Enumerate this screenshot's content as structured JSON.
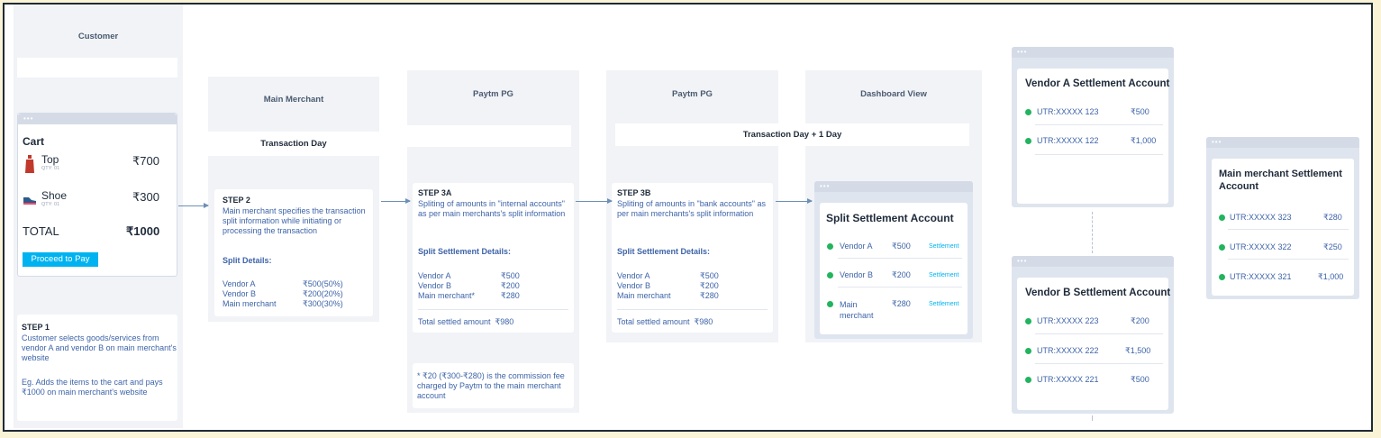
{
  "customer": {
    "title": "Customer",
    "cart": {
      "title": "Cart",
      "items": [
        {
          "name": "Top",
          "qty": "QTY: 01",
          "price": "₹700"
        },
        {
          "name": "Shoe",
          "qty": "QTY: 01",
          "price": "₹300"
        }
      ],
      "total_label": "TOTAL",
      "total_value": "₹1000",
      "button": "Proceed to Pay"
    },
    "step1": {
      "title": "STEP 1",
      "text": "Customer selects goods/services from vendor A and vendor B on main merchant's website",
      "example": "Eg. Adds the items to the cart and pays ₹1000 on main merchant's website"
    }
  },
  "main_merchant": {
    "title": "Main Merchant",
    "band": "Transaction Day",
    "step2": {
      "title": "STEP 2",
      "text": "Main merchant specifies the transaction split information while initiating or processing the transaction",
      "split_title": "Split Details:",
      "rows": [
        {
          "label": "Vendor A",
          "value": "₹500(50%)"
        },
        {
          "label": "Vendor B",
          "value": "₹200(20%)"
        },
        {
          "label": "Main merchant",
          "value": "₹300(30%)"
        }
      ]
    }
  },
  "pg_a": {
    "title": "Paytm PG",
    "step3a": {
      "title": "STEP 3A",
      "text": "Spliting of amounts in \"internal accounts\" as per main merchants's split information",
      "details_title": "Split Settlement Details:",
      "rows": [
        {
          "label": "Vendor A",
          "value": "₹500"
        },
        {
          "label": "Vendor B",
          "value": "₹200"
        },
        {
          "label": "Main merchant*",
          "value": "₹280"
        }
      ],
      "total": "Total settled amount  ₹980"
    },
    "note": "* ₹20 (₹300-₹280) is the commission fee charged by Paytm to the main merchant account"
  },
  "pg_b": {
    "title": "Paytm PG",
    "band": "Transaction Day + 1 Day",
    "step3b": {
      "title": "STEP 3B",
      "text": "Spliting of amounts in \"bank accounts\" as per main merchants's split information",
      "details_title": "Split Settlement Details:",
      "rows": [
        {
          "label": "Vendor A",
          "value": "₹500"
        },
        {
          "label": "Vendor B",
          "value": "₹200"
        },
        {
          "label": "Main merchant",
          "value": "₹280"
        }
      ],
      "total": "Total settled amount  ₹980"
    }
  },
  "dashboard": {
    "title": "Dashboard View",
    "card_title": "Split Settlement Account",
    "rows": [
      {
        "label": "Vendor A",
        "value": "₹500",
        "link": "Settlement"
      },
      {
        "label": "Vendor B",
        "value": "₹200",
        "link": "Settlement"
      },
      {
        "label": "Main merchant",
        "value": "₹280",
        "link": "Settlement"
      }
    ]
  },
  "vendor_a": {
    "title": "Vendor A Settlement Account",
    "rows": [
      {
        "utr": "UTR:XXXXX 123",
        "value": "₹500"
      },
      {
        "utr": "UTR:XXXXX 122",
        "value": "₹1,000"
      }
    ]
  },
  "vendor_b": {
    "title": "Vendor B Settlement Account",
    "rows": [
      {
        "utr": "UTR:XXXXX 223",
        "value": "₹200"
      },
      {
        "utr": "UTR:XXXXX 222",
        "value": "₹1,500"
      },
      {
        "utr": "UTR:XXXXX 221",
        "value": "₹500"
      }
    ]
  },
  "main_settlement": {
    "title": "Main merchant Settlement Account",
    "rows": [
      {
        "utr": "UTR:XXXXX 323",
        "value": "₹280"
      },
      {
        "utr": "UTR:XXXXX 322",
        "value": "₹250"
      },
      {
        "utr": "UTR:XXXXX 321",
        "value": "₹1,000"
      }
    ]
  },
  "colors": {
    "accent": "#00b3f0",
    "status": "#22b45e",
    "lane": "#f1f3f7",
    "text_blue": "#3e64a8"
  }
}
